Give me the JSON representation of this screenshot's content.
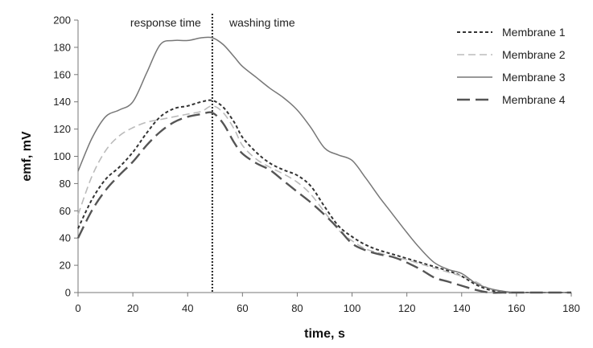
{
  "chart_data": {
    "type": "line",
    "xlabel": "time, s",
    "ylabel": "emf, mV",
    "xlim": [
      0,
      180
    ],
    "ylim": [
      0,
      200
    ],
    "xticks": [
      0,
      20,
      40,
      60,
      80,
      100,
      120,
      140,
      160,
      180
    ],
    "yticks": [
      0,
      20,
      40,
      60,
      80,
      100,
      120,
      140,
      160,
      180,
      200
    ],
    "grid": false,
    "legend_position": "top-right",
    "annotations": {
      "divider_x": 49,
      "left_text": "response time",
      "right_text": "washing time"
    },
    "series": [
      {
        "name": "Membrane 1",
        "style": "short-dash",
        "color": "#333333",
        "x": [
          0,
          5,
          10,
          15,
          20,
          25,
          30,
          35,
          40,
          45,
          49,
          53,
          57,
          60,
          65,
          70,
          75,
          80,
          85,
          90,
          95,
          100,
          105,
          110,
          115,
          120,
          125,
          130,
          135,
          140,
          145,
          150,
          155,
          160,
          170,
          180
        ],
        "y": [
          47,
          68,
          83,
          92,
          103,
          117,
          129,
          135,
          137,
          140,
          141,
          136,
          125,
          114,
          103,
          95,
          90,
          86,
          78,
          63,
          49,
          41,
          35,
          31,
          28,
          25,
          22,
          19,
          16,
          12,
          6,
          2,
          0,
          0,
          0,
          0
        ]
      },
      {
        "name": "Membrane 2",
        "style": "medium-dash",
        "color": "#bbbbbb",
        "x": [
          0,
          5,
          10,
          15,
          20,
          25,
          30,
          35,
          40,
          45,
          49,
          53,
          57,
          60,
          65,
          70,
          75,
          80,
          85,
          90,
          95,
          100,
          105,
          110,
          115,
          120,
          125,
          130,
          135,
          140,
          145,
          150,
          155,
          160,
          170,
          180
        ],
        "y": [
          57,
          85,
          104,
          115,
          121,
          125,
          127,
          129,
          131,
          133,
          137,
          132,
          120,
          108,
          98,
          92,
          87,
          81,
          72,
          59,
          46,
          38,
          32,
          29,
          26,
          24,
          21,
          18,
          15,
          12,
          8,
          3,
          1,
          0,
          0,
          0
        ]
      },
      {
        "name": "Membrane 3",
        "style": "solid",
        "color": "#777777",
        "x": [
          0,
          5,
          10,
          15,
          20,
          25,
          30,
          35,
          40,
          45,
          49,
          53,
          57,
          60,
          65,
          70,
          75,
          80,
          85,
          90,
          95,
          100,
          105,
          110,
          115,
          120,
          125,
          130,
          135,
          140,
          145,
          150,
          155,
          160,
          170,
          180
        ],
        "y": [
          89,
          113,
          129,
          134,
          140,
          161,
          182,
          185,
          185,
          187,
          187,
          182,
          173,
          166,
          158,
          150,
          143,
          134,
          121,
          106,
          101,
          97,
          84,
          70,
          57,
          44,
          32,
          22,
          17,
          14,
          7,
          3,
          1,
          0,
          0,
          0
        ]
      },
      {
        "name": "Membrane 4",
        "style": "long-dash",
        "color": "#555555",
        "x": [
          0,
          5,
          10,
          15,
          20,
          25,
          30,
          35,
          40,
          45,
          49,
          53,
          57,
          60,
          65,
          70,
          75,
          80,
          85,
          90,
          95,
          100,
          105,
          110,
          115,
          120,
          125,
          130,
          135,
          140,
          145,
          150,
          155,
          160,
          170,
          180
        ],
        "y": [
          40,
          60,
          75,
          86,
          96,
          108,
          118,
          125,
          129,
          131,
          132,
          124,
          110,
          102,
          95,
          90,
          82,
          74,
          66,
          57,
          47,
          36,
          31,
          28,
          26,
          22,
          17,
          11,
          8,
          5,
          2,
          0,
          0,
          0,
          0,
          0
        ]
      }
    ]
  }
}
